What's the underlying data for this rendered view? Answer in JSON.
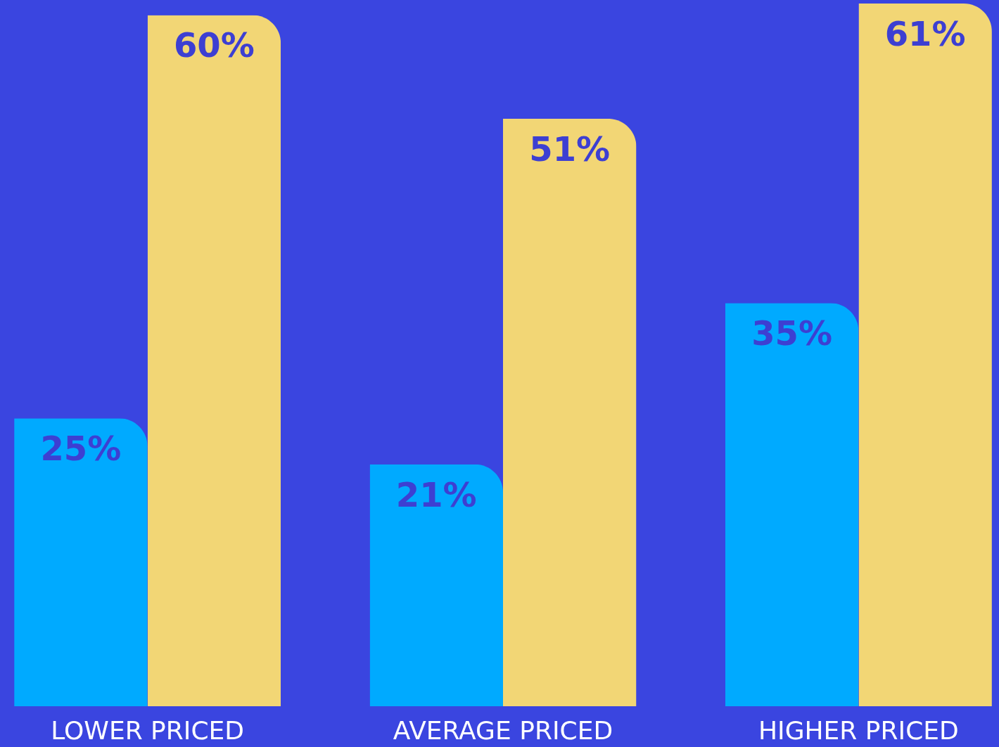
{
  "chart_data": {
    "type": "bar",
    "categories": [
      "LOWER PRICED",
      "AVERAGE PRICED",
      "HIGHER PRICED"
    ],
    "series": [
      {
        "color": "#00aaff",
        "values": [
          25,
          21,
          35
        ],
        "value_labels": [
          "25%",
          "21%",
          "35%"
        ]
      },
      {
        "color": "#f2d675",
        "values": [
          60,
          51,
          61
        ],
        "value_labels": [
          "60%",
          "51%",
          "61%"
        ]
      }
    ],
    "data_labels": false
  }
}
